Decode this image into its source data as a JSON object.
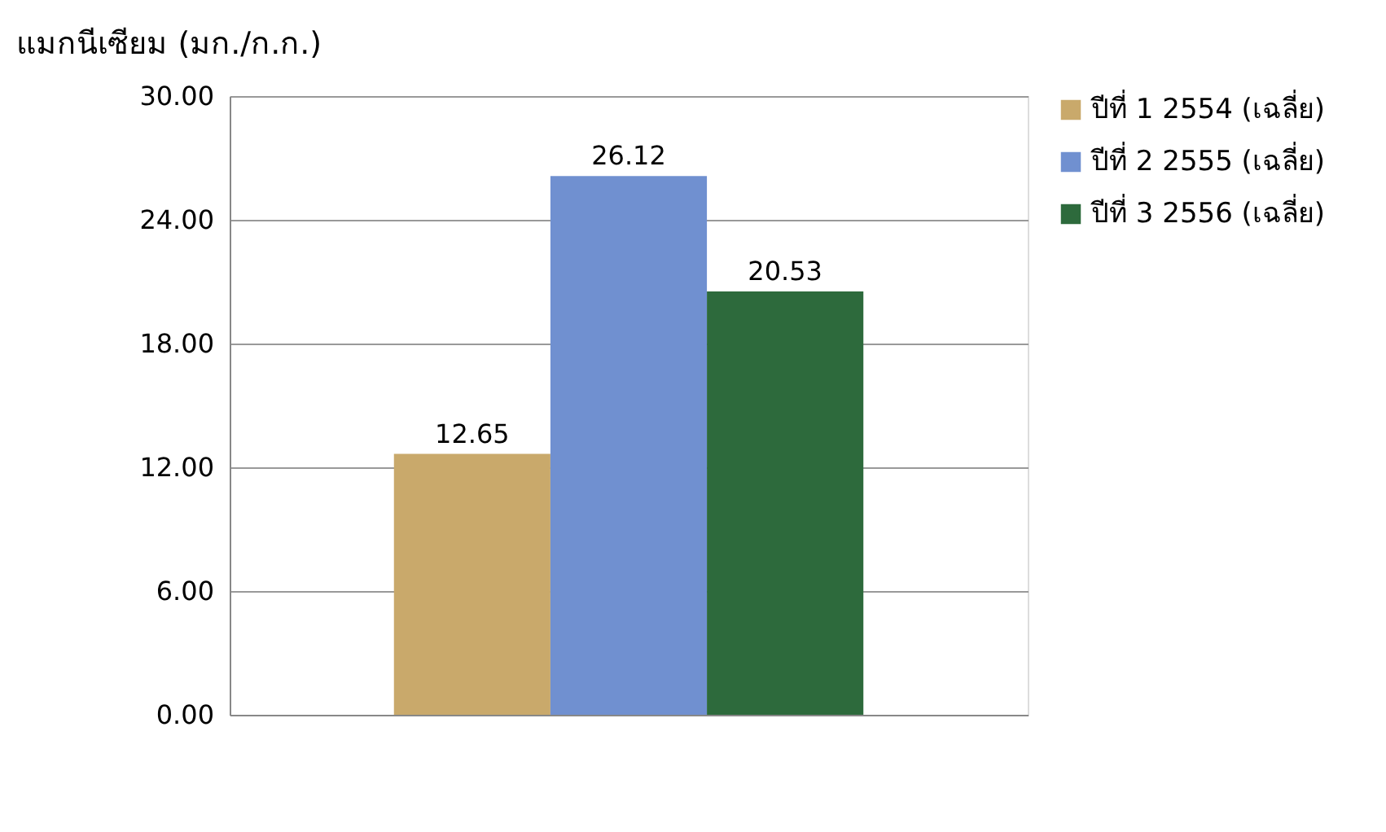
{
  "chart_data": {
    "type": "bar",
    "title": "แมกนีเซียม (มก./ก.ก.)",
    "categories": [
      null
    ],
    "series": [
      {
        "name": "ปีที่ 1 2554  (เฉลี่ย)",
        "color": "#c9a96b",
        "values": [
          12.65
        ]
      },
      {
        "name": "ปีที่ 2 2555 (เฉลี่ย)",
        "color": "#7090d0",
        "values": [
          26.12
        ]
      },
      {
        "name": "ปีที่ 3 2556 (เฉลี่ย)",
        "color": "#2d6a3c",
        "values": [
          20.53
        ]
      }
    ],
    "ylim": [
      0,
      30
    ],
    "yticks": [
      {
        "value": 0,
        "label": "0.00"
      },
      {
        "value": 6,
        "label": "6.00"
      },
      {
        "value": 12,
        "label": "12.00"
      },
      {
        "value": 18,
        "label": "18.00"
      },
      {
        "value": 24,
        "label": "24.00"
      },
      {
        "value": 30,
        "label": "30.00"
      }
    ],
    "grid": "y",
    "legend": "right",
    "data_labels": true
  }
}
